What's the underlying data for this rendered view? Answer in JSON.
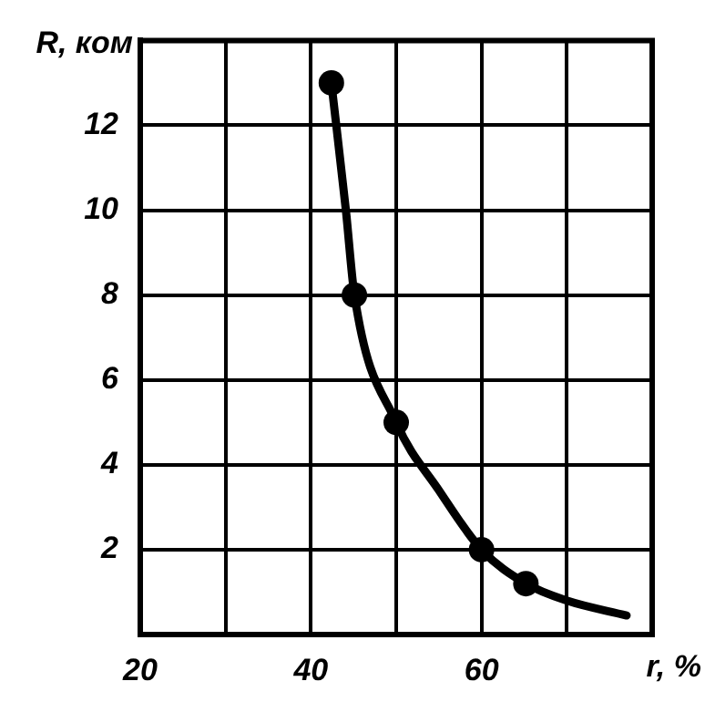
{
  "chart_data": {
    "type": "line",
    "xlabel": "r, %",
    "ylabel": "R, ком",
    "xlim": [
      20,
      80
    ],
    "ylim": [
      0,
      14
    ],
    "xticks": [
      20,
      {
        "value": 30,
        "label": null
      },
      40,
      {
        "value": 50,
        "label": null
      },
      60,
      {
        "value": 70,
        "label": null
      }
    ],
    "yticks": [
      2,
      4,
      6,
      8,
      10,
      12
    ],
    "grid": true,
    "series": [
      {
        "type": "line",
        "color": "#000000",
        "marker": "none",
        "x": [
          42.4,
          44.1,
          45.1,
          50,
          55,
          60,
          65.2,
          70,
          77
        ],
        "values": [
          13,
          10,
          8,
          5,
          3.4,
          2,
          1.2,
          0.8,
          0.45
        ]
      },
      {
        "type": "scatter",
        "color": "#000000",
        "marker": "circle",
        "x": [
          42.4,
          45.1,
          50,
          60,
          65.2
        ],
        "values": [
          13,
          8,
          5,
          2,
          1.2
        ]
      }
    ]
  }
}
